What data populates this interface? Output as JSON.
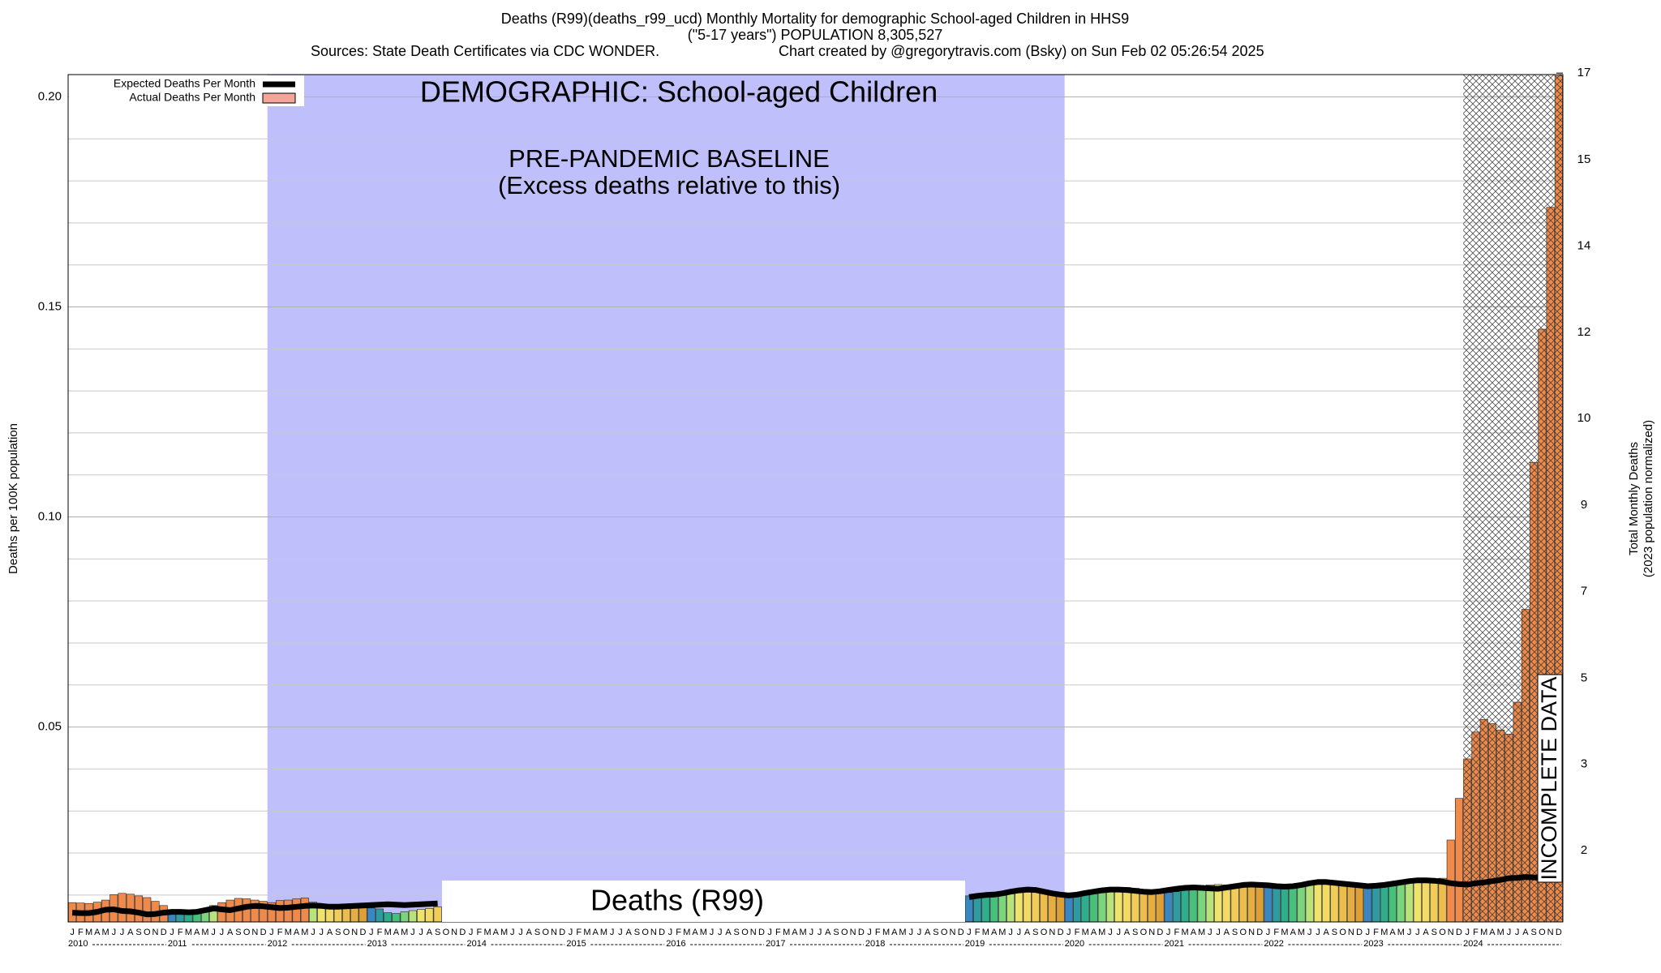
{
  "chart_data": {
    "type": "bar",
    "title": "Deaths (R99)(deaths_r99_ucd) Monthly Mortality for demographic School-aged Children in HHS9",
    "subtitle": "(\"5-17 years\") POPULATION 8,305,527",
    "source": "Sources: State Death Certificates via CDC WONDER.",
    "credit": "Chart created by @gregorytravis.com (Bsky) on Sun Feb 02 05:26:54 2025",
    "y_label": "Deaths per 100K population",
    "y2_label": "Total Monthly Deaths",
    "y2_sublabel": "(2023 population normalized)",
    "annotations": {
      "demographic": "DEMOGRAPHIC: School-aged Children",
      "baseline": "PRE-PANDEMIC BASELINE",
      "baseline_note": "(Excess deaths relative to this)",
      "cause": "Deaths (R99)",
      "incomplete": "INCOMPLETE DATA"
    },
    "shade_baseline": {
      "from": "2012",
      "to": "2019",
      "color": "#bfbffc"
    },
    "incomplete_from": "2024",
    "month_letters": [
      "J",
      "F",
      "M",
      "A",
      "M",
      "J",
      "J",
      "A",
      "S",
      "O",
      "N",
      "D"
    ],
    "years": [
      "2010",
      "2011",
      "2012",
      "2013",
      "2014",
      "2015",
      "2016",
      "2017",
      "2018",
      "2019",
      "2020",
      "2021",
      "2022",
      "2023",
      "2024"
    ],
    "month_colors": [
      "#3a86c0",
      "#2f9aa0",
      "#2fae8c",
      "#47c07c",
      "#7bd57c",
      "#b8e27a",
      "#f0e36c",
      "#f3da62",
      "#f1cc58",
      "#ecbd4c",
      "#e6ad40",
      "#dea036"
    ],
    "excess_color": "#f08a4a",
    "ylim": [
      0.0036,
      0.2053
    ],
    "yticks": [
      0.05,
      {
        "value": 0.1,
        "label": "0.10"
      },
      0.15,
      {
        "value": 0.2,
        "label": "0.20"
      }
    ],
    "minor_yticks": [
      0.01,
      0.02,
      0.03,
      0.04,
      0.06,
      0.07,
      0.08,
      0.09,
      0.11,
      0.12,
      0.13,
      0.14,
      0.16,
      0.17,
      0.18,
      0.19
    ],
    "y2lim": [
      0.3,
      17.05
    ],
    "y2ticks": [
      {
        "value": 1.71,
        "label": "2"
      },
      {
        "value": 3.42,
        "label": "3"
      },
      {
        "value": 5.12,
        "label": "5"
      },
      {
        "value": 6.83,
        "label": "7"
      },
      {
        "value": 8.54,
        "label": "9"
      },
      {
        "value": 10.25,
        "label": "10"
      },
      {
        "value": 11.95,
        "label": "12"
      },
      {
        "value": 13.66,
        "label": "14"
      },
      {
        "value": 15.37,
        "label": "15"
      },
      {
        "value": 17.08,
        "label": "17"
      }
    ],
    "grid": true,
    "legend": "top-left",
    "series": [
      {
        "name": "Expected Deaths Per Month",
        "color": "#000000",
        "values": [
          0.0058,
          0.0057,
          0.0057,
          0.006,
          0.0065,
          0.0066,
          0.0062,
          0.0061,
          0.0058,
          0.0054,
          0.0055,
          0.0058,
          0.006,
          0.006,
          0.0059,
          0.006,
          0.0064,
          0.0068,
          0.0066,
          0.0064,
          0.0068,
          0.0072,
          0.0074,
          0.0073,
          0.0071,
          0.0069,
          0.007,
          0.0072,
          0.0074,
          0.0075,
          0.0074,
          0.0072,
          0.0072,
          0.0073,
          0.0074,
          0.0075,
          0.0076,
          0.0077,
          0.0078,
          0.0077,
          0.0076,
          0.0077,
          0.0078,
          0.0079,
          0.008,
          null,
          null,
          null,
          null,
          null,
          null,
          null,
          null,
          null,
          null,
          null,
          null,
          null,
          null,
          null,
          null,
          null,
          null,
          null,
          null,
          null,
          null,
          null,
          null,
          null,
          null,
          null,
          null,
          null,
          null,
          null,
          null,
          null,
          null,
          null,
          null,
          null,
          null,
          null,
          null,
          null,
          null,
          null,
          null,
          null,
          null,
          null,
          null,
          null,
          null,
          null,
          null,
          null,
          null,
          null,
          null,
          null,
          null,
          null,
          null,
          null,
          null,
          null,
          0.0095,
          0.0098,
          0.01,
          0.0101,
          0.0104,
          0.0108,
          0.0111,
          0.0113,
          0.0112,
          0.0108,
          0.0104,
          0.0101,
          0.0099,
          0.0101,
          0.0105,
          0.0108,
          0.0111,
          0.0113,
          0.0113,
          0.0112,
          0.011,
          0.0108,
          0.0107,
          0.0109,
          0.0112,
          0.0115,
          0.0117,
          0.0118,
          0.0117,
          0.0116,
          0.0115,
          0.0118,
          0.0121,
          0.0124,
          0.0125,
          0.0124,
          0.0123,
          0.0121,
          0.012,
          0.0121,
          0.0124,
          0.0128,
          0.0131,
          0.0131,
          0.0129,
          0.0127,
          0.0125,
          0.0123,
          0.0121,
          0.0122,
          0.0124,
          0.0127,
          0.013,
          0.0133,
          0.0135,
          0.0135,
          0.0134,
          0.0132,
          0.0128,
          0.0126,
          0.0125,
          0.0128,
          0.013,
          0.0133,
          0.0136,
          0.014,
          0.0141,
          0.0143,
          0.0142,
          0.0141,
          0.014,
          0.0138
        ]
      },
      {
        "name": "Actual Deaths Per Month",
        "color": "#f4a59a",
        "values": [
          0.0082,
          0.0081,
          0.008,
          0.0083,
          0.0088,
          0.0101,
          0.0104,
          0.0102,
          0.0098,
          0.0094,
          0.0085,
          0.0075,
          0.0065,
          0.0063,
          0.006,
          0.0062,
          0.0066,
          0.0075,
          0.0082,
          0.0088,
          0.0092,
          0.0091,
          0.0088,
          0.0085,
          0.0082,
          0.0087,
          0.0088,
          0.0091,
          0.0093,
          0.0083,
          0.0078,
          0.0076,
          0.0075,
          0.0074,
          0.0072,
          0.0071,
          0.0069,
          0.0067,
          0.0058,
          0.0056,
          0.006,
          0.0063,
          0.0066,
          0.0068,
          0.0072,
          null,
          null,
          null,
          null,
          null,
          null,
          null,
          null,
          null,
          null,
          null,
          null,
          null,
          null,
          null,
          null,
          null,
          null,
          null,
          null,
          null,
          null,
          null,
          null,
          null,
          null,
          null,
          null,
          null,
          null,
          null,
          null,
          null,
          null,
          null,
          null,
          null,
          null,
          null,
          null,
          null,
          null,
          null,
          null,
          null,
          null,
          null,
          null,
          null,
          null,
          null,
          null,
          null,
          null,
          null,
          null,
          null,
          null,
          null,
          null,
          null,
          null,
          null,
          0.0098,
          0.0097,
          0.0099,
          0.01,
          0.0101,
          0.0103,
          0.0106,
          0.011,
          0.0111,
          0.0108,
          0.0105,
          0.0103,
          0.0101,
          0.0102,
          0.0106,
          0.0109,
          0.0112,
          0.0116,
          0.0118,
          0.0118,
          0.0116,
          0.0113,
          0.011,
          0.0108,
          0.0106,
          0.0108,
          0.0112,
          0.0116,
          0.012,
          0.0124,
          0.0125,
          0.0124,
          0.0122,
          0.012,
          0.0122,
          0.0124,
          0.0122,
          0.012,
          0.0119,
          0.0121,
          0.0124,
          0.0128,
          0.0132,
          0.0133,
          0.0131,
          0.0129,
          0.0126,
          0.0122,
          0.012,
          0.0121,
          0.0124,
          0.0128,
          0.013,
          0.0134,
          0.0136,
          0.0134,
          0.0138,
          0.014,
          0.0231,
          0.033,
          0.0424,
          0.0488,
          0.0518,
          0.0508,
          0.0493,
          0.0483,
          0.0559,
          0.078,
          0.113,
          0.1447,
          0.1737,
          0.205
        ]
      }
    ]
  }
}
